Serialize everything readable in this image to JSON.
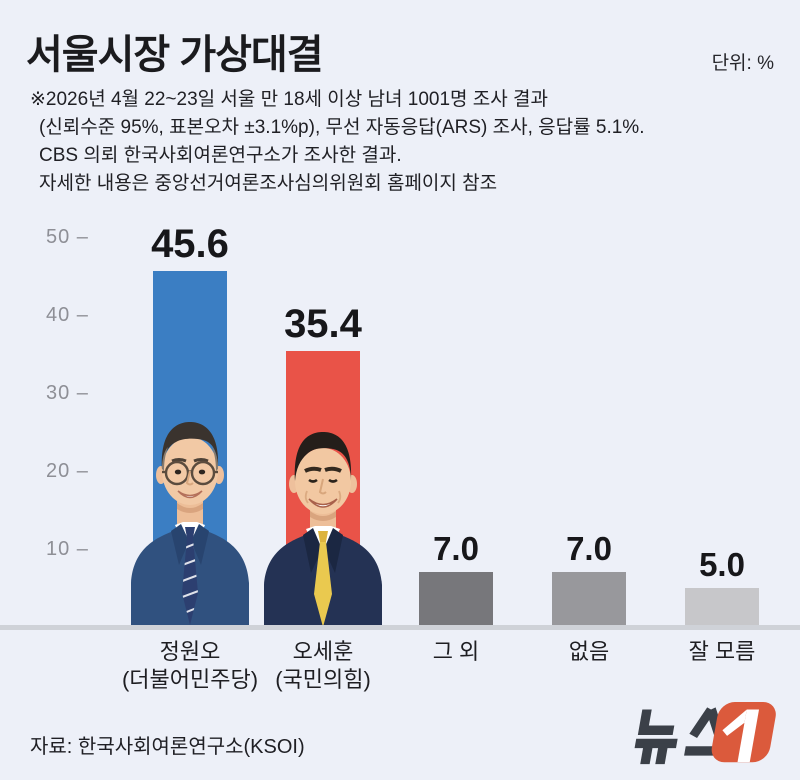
{
  "header": {
    "title": "서울시장 가상대결",
    "unit_label": "단위: %"
  },
  "notes": {
    "lines": [
      "※2026년 4월 22~23일 서울 만 18세 이상 남녀 1001명 조사 결과",
      "(신뢰수준 95%, 표본오차 ±3.1%p), 무선 자동응답(ARS) 조사, 응답률 5.1%.",
      "CBS 의뢰 한국사회여론연구소가 조사한 결과.",
      "자세한 내용은 중앙선거여론조사심의위원회 홈페이지 참조"
    ]
  },
  "chart_data": {
    "type": "bar",
    "title": "서울시장 가상대결",
    "unit": "%",
    "categories": [
      {
        "label": "정원오",
        "sublabel": "(더불어민주당)"
      },
      {
        "label": "오세훈",
        "sublabel": "(국민의힘)"
      },
      {
        "label": "그 외",
        "sublabel": ""
      },
      {
        "label": "없음",
        "sublabel": ""
      },
      {
        "label": "잘 모름",
        "sublabel": ""
      }
    ],
    "values": [
      45.6,
      35.4,
      7.0,
      7.0,
      5.0
    ],
    "value_labels": [
      "45.6",
      "35.4",
      "7.0",
      "7.0",
      "5.0"
    ],
    "bar_colors": [
      "#3b7ec3",
      "#e95348",
      "#77777b",
      "#98989c",
      "#c7c7ca"
    ],
    "yticks": [
      50,
      40,
      30,
      20,
      10
    ],
    "tick_dash": "–",
    "ylim": [
      0,
      52
    ],
    "grid": false,
    "legend": false,
    "background": "#edf0f8"
  },
  "footer": {
    "source": "자료: 한국사회여론연구소(KSOI)",
    "logo_text": "뉴스",
    "logo_number": "1",
    "logo_text_color": "#3b4048",
    "logo_orange": "#db5a3c"
  }
}
